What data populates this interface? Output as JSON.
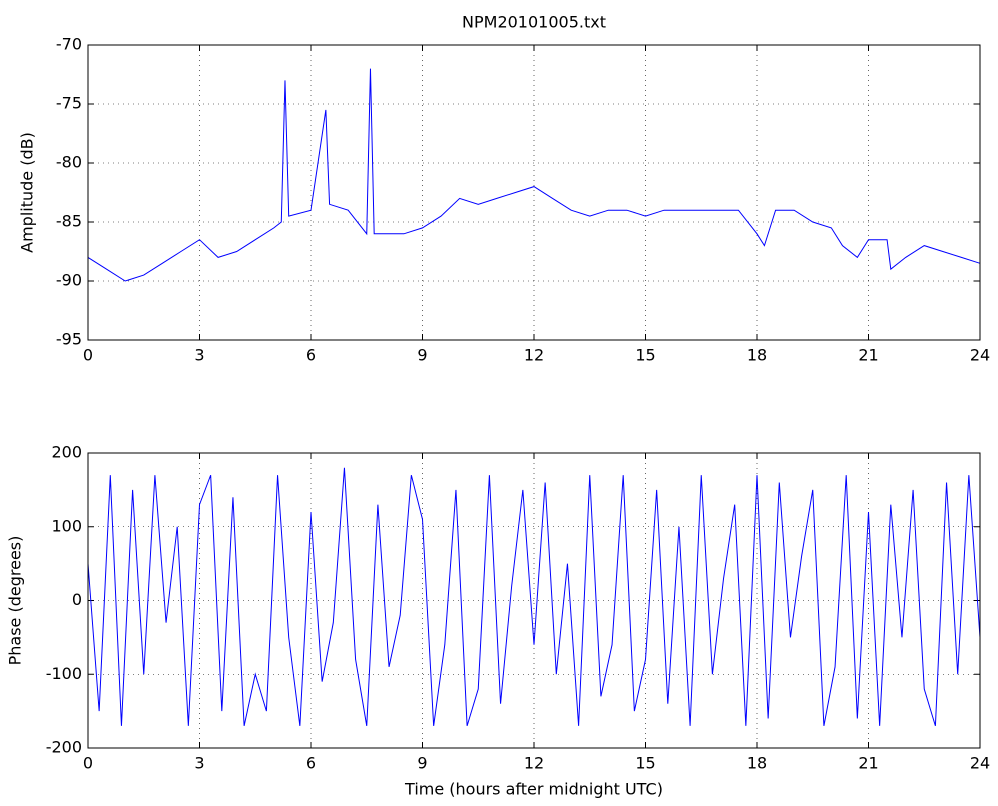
{
  "chart_data": [
    {
      "type": "line",
      "title": "NPM20101005.txt",
      "ylabel": "Amplitude (dB)",
      "color": "#0000ff",
      "grid": true,
      "x": [
        0,
        0.5,
        1,
        1.5,
        2,
        2.5,
        3,
        3.5,
        4,
        4.5,
        5,
        5.2,
        5.3,
        5.4,
        6,
        6.4,
        6.5,
        7,
        7.5,
        7.6,
        7.7,
        8,
        8.5,
        9,
        9.5,
        10,
        10.5,
        11,
        11.5,
        12,
        12.5,
        13,
        13.5,
        14,
        14.5,
        15,
        15.5,
        16,
        16.5,
        17,
        17.5,
        18,
        18.2,
        18.5,
        19,
        19.5,
        20,
        20.3,
        20.7,
        21,
        21.5,
        21.6,
        22,
        22.5,
        23,
        23.5,
        24
      ],
      "values": [
        -88,
        -89,
        -90,
        -89.5,
        -88.5,
        -87.5,
        -86.5,
        -88,
        -87.5,
        -86.5,
        -85.5,
        -85,
        -73,
        -84.5,
        -84,
        -75.5,
        -83.5,
        -84,
        -86,
        -72,
        -86,
        -86,
        -86,
        -85.5,
        -84.5,
        -83,
        -83.5,
        -83,
        -82.5,
        -82,
        -83,
        -84,
        -84.5,
        -84,
        -84,
        -84.5,
        -84,
        -84,
        -84,
        -84,
        -84,
        -86,
        -87,
        -84,
        -84,
        -85,
        -85.5,
        -87,
        -88,
        -86.5,
        -86.5,
        -89,
        -88,
        -87,
        -87.5,
        -88,
        -88.5
      ],
      "xlim": [
        0,
        24
      ],
      "xticks": [
        0,
        3,
        6,
        9,
        12,
        15,
        18,
        21,
        24
      ],
      "ylim": [
        -95,
        -70
      ],
      "yticks": [
        -95,
        -90,
        -85,
        -80,
        -75,
        -70
      ]
    },
    {
      "type": "line",
      "xlabel": "Time (hours after midnight UTC)",
      "ylabel": "Phase (degrees)",
      "color": "#0000ff",
      "grid": true,
      "x": [
        0,
        0.3,
        0.6,
        0.9,
        1.2,
        1.5,
        1.8,
        2.1,
        2.4,
        2.7,
        3,
        3.3,
        3.6,
        3.9,
        4.2,
        4.5,
        4.8,
        5.1,
        5.4,
        5.7,
        6,
        6.3,
        6.6,
        6.9,
        7.2,
        7.5,
        7.8,
        8.1,
        8.4,
        8.7,
        9,
        9.3,
        9.6,
        9.9,
        10.2,
        10.5,
        10.8,
        11.1,
        11.4,
        11.7,
        12,
        12.3,
        12.6,
        12.9,
        13.2,
        13.5,
        13.8,
        14.1,
        14.4,
        14.7,
        15,
        15.3,
        15.6,
        15.9,
        16.2,
        16.5,
        16.8,
        17.1,
        17.4,
        17.7,
        18,
        18.3,
        18.6,
        18.9,
        19.2,
        19.5,
        19.8,
        20.1,
        20.4,
        20.7,
        21,
        21.3,
        21.6,
        21.9,
        22.2,
        22.5,
        22.8,
        23.1,
        23.4,
        23.7,
        24
      ],
      "values": [
        50,
        -150,
        170,
        -170,
        150,
        -100,
        170,
        -30,
        100,
        -170,
        130,
        170,
        -150,
        140,
        -170,
        -100,
        -150,
        170,
        -50,
        -170,
        120,
        -110,
        -30,
        180,
        -80,
        -170,
        130,
        -90,
        -20,
        170,
        110,
        -170,
        -60,
        150,
        -170,
        -120,
        170,
        -140,
        20,
        150,
        -60,
        160,
        -100,
        50,
        -170,
        170,
        -130,
        -60,
        170,
        -150,
        -80,
        150,
        -140,
        100,
        -170,
        170,
        -100,
        30,
        130,
        -170,
        170,
        -160,
        160,
        -50,
        60,
        150,
        -170,
        -90,
        170,
        -160,
        120,
        -170,
        130,
        -50,
        150,
        -120,
        -170,
        160,
        -100,
        170,
        -50
      ],
      "xlim": [
        0,
        24
      ],
      "xticks": [
        0,
        3,
        6,
        9,
        12,
        15,
        18,
        21,
        24
      ],
      "ylim": [
        -200,
        200
      ],
      "yticks": [
        -200,
        -100,
        0,
        100,
        200
      ]
    }
  ]
}
